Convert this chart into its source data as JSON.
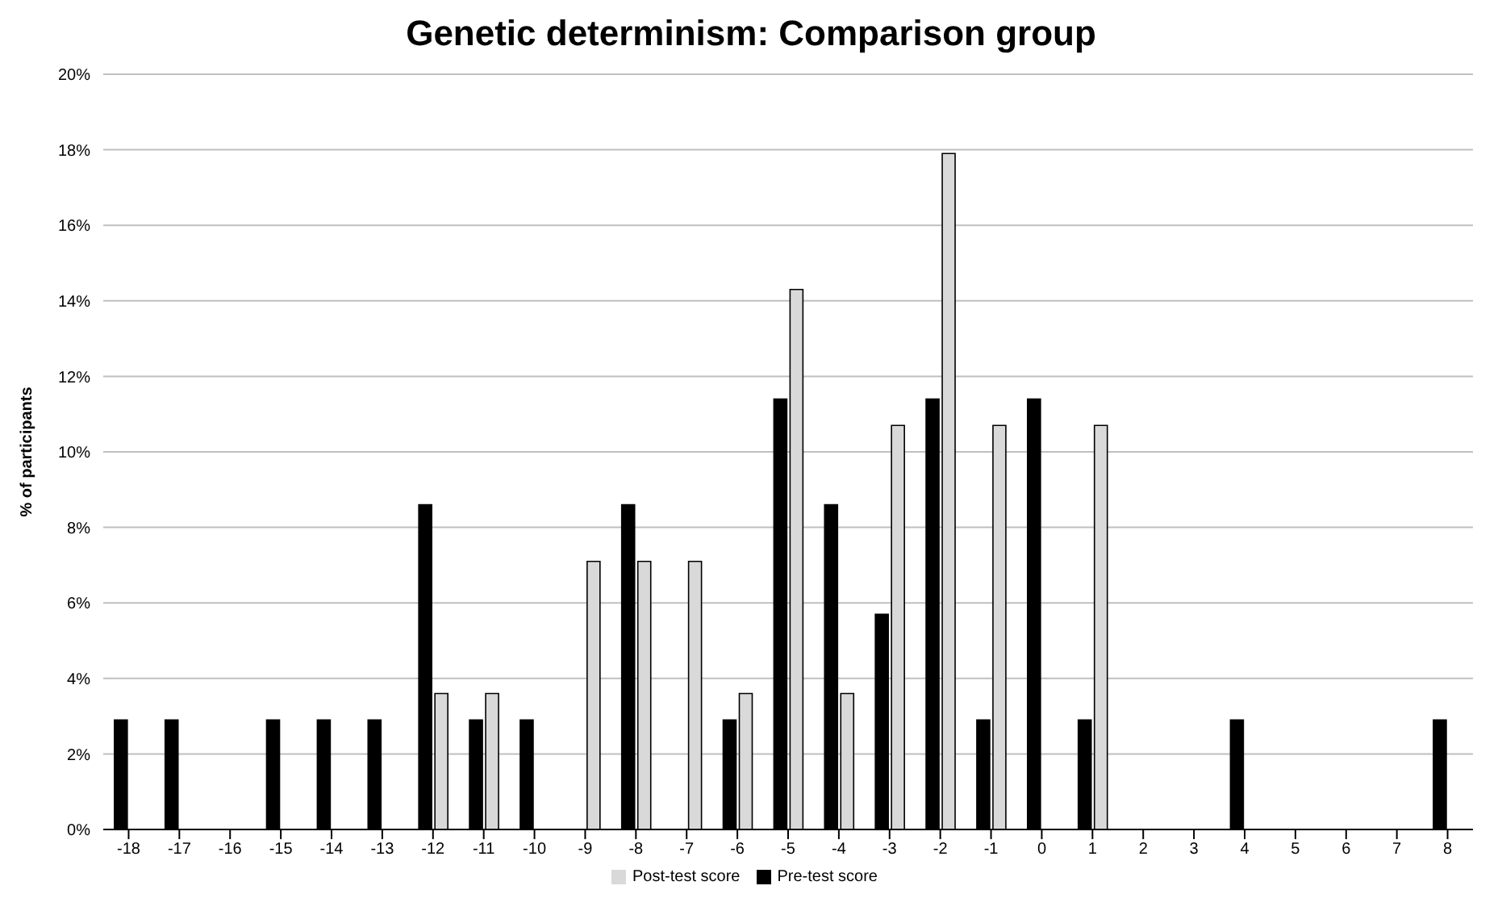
{
  "chart_data": {
    "type": "bar",
    "title": "Genetic determinism: Comparison group",
    "ylabel": "% of participants",
    "categories": [
      "-18",
      "-17",
      "-16",
      "-15",
      "-14",
      "-13",
      "-12",
      "-11",
      "-10",
      "-9",
      "-8",
      "-7",
      "-6",
      "-5",
      "-4",
      "-3",
      "-2",
      "-1",
      "0",
      "1",
      "2",
      "3",
      "4",
      "5",
      "6",
      "7",
      "8"
    ],
    "series": [
      {
        "name": "Pre-test score",
        "color": "#000000",
        "values": [
          2.9,
          2.9,
          0,
          2.9,
          2.9,
          2.9,
          8.6,
          2.9,
          2.9,
          0,
          8.6,
          0,
          2.9,
          11.4,
          8.6,
          5.7,
          11.4,
          2.9,
          11.4,
          2.9,
          0,
          0,
          2.9,
          0,
          0,
          0,
          2.9
        ]
      },
      {
        "name": "Post-test score",
        "color": "#d9d9d9",
        "values": [
          0,
          0,
          0,
          0,
          0,
          0,
          3.6,
          3.6,
          0,
          7.1,
          7.1,
          7.1,
          3.6,
          14.3,
          3.6,
          10.7,
          17.9,
          10.7,
          0,
          10.7,
          0,
          0,
          0,
          0,
          0,
          0,
          0
        ]
      }
    ],
    "ylim": [
      0,
      20
    ],
    "yticks": [
      {
        "value": 0,
        "label": "0%"
      },
      {
        "value": 2,
        "label": "2%"
      },
      {
        "value": 4,
        "label": "4%"
      },
      {
        "value": 6,
        "label": "6%"
      },
      {
        "value": 8,
        "label": "8%"
      },
      {
        "value": 10,
        "label": "10%"
      },
      {
        "value": 12,
        "label": "12%"
      },
      {
        "value": 14,
        "label": "14%"
      },
      {
        "value": 16,
        "label": "16%"
      },
      {
        "value": 18,
        "label": "18%"
      },
      {
        "value": 20,
        "label": "20%"
      }
    ],
    "grid": "y",
    "legend": "bottom"
  }
}
